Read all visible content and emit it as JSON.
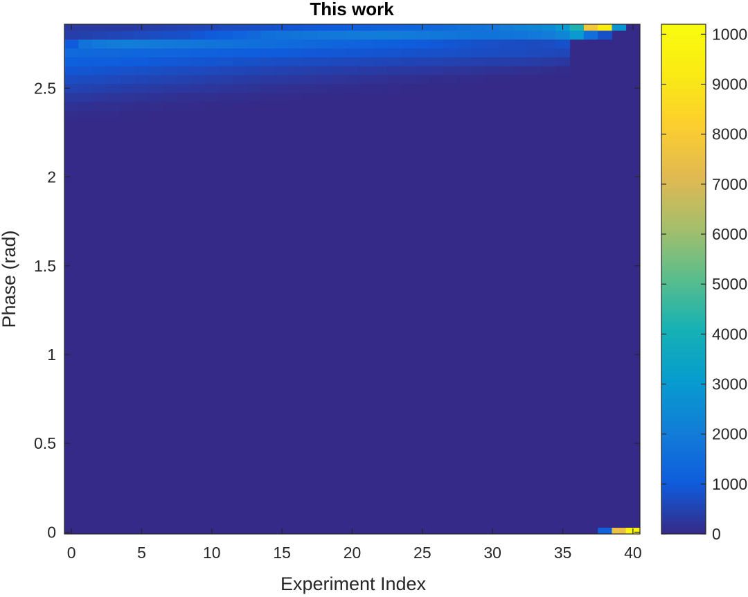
{
  "chart_data": {
    "type": "heatmap",
    "title": "This work",
    "xlabel": "Experiment Index",
    "ylabel": "Phase (rad)",
    "xlim": [
      -0.5,
      40.5
    ],
    "ylim": [
      -0.01,
      2.86
    ],
    "x_ticks": [
      0,
      5,
      10,
      15,
      20,
      25,
      30,
      35,
      40
    ],
    "x_tick_labels": [
      "0",
      "5",
      "10",
      "15",
      "20",
      "25",
      "30",
      "35",
      "40"
    ],
    "y_ticks": [
      0,
      0.5,
      1,
      1.5,
      2,
      2.5
    ],
    "y_tick_labels": [
      "0",
      "0.5",
      "1",
      "1.5",
      "2",
      "2.5"
    ],
    "x_count": 41,
    "bin_centers": [
      0.0,
      2.25,
      2.3,
      2.35,
      2.4,
      2.45,
      2.5,
      2.55,
      2.6,
      2.65,
      2.7,
      2.75,
      2.8,
      2.85
    ],
    "background_value": 0,
    "row_values": {
      "0.0": [
        0,
        0,
        0,
        0,
        0,
        0,
        0,
        0,
        0,
        0,
        0,
        0,
        0,
        0,
        0,
        0,
        0,
        0,
        0,
        0,
        0,
        0,
        0,
        0,
        0,
        0,
        0,
        0,
        0,
        0,
        0,
        0,
        0,
        0,
        0,
        0,
        0,
        0,
        1200,
        7500,
        9800
      ],
      "2.25": [
        0,
        0,
        0,
        0,
        0,
        0,
        0,
        0,
        0,
        0,
        0,
        0,
        0,
        0,
        0,
        0,
        0,
        0,
        0,
        0,
        0,
        0,
        0,
        0,
        0,
        0,
        0,
        0,
        0,
        0,
        0,
        0,
        0,
        0,
        0,
        0,
        0,
        0,
        0,
        0,
        0
      ],
      "2.3": [
        0,
        0,
        0,
        0,
        0,
        0,
        0,
        0,
        0,
        0,
        0,
        0,
        0,
        0,
        0,
        0,
        0,
        0,
        0,
        0,
        0,
        0,
        0,
        0,
        0,
        0,
        0,
        0,
        0,
        0,
        0,
        0,
        0,
        0,
        0,
        0,
        0,
        0,
        0,
        0,
        0
      ],
      "2.35": [
        60,
        50,
        40,
        30,
        20,
        15,
        10,
        5,
        0,
        0,
        0,
        0,
        0,
        0,
        0,
        0,
        0,
        0,
        0,
        0,
        0,
        0,
        0,
        0,
        0,
        0,
        0,
        0,
        0,
        0,
        0,
        0,
        0,
        0,
        0,
        0,
        0,
        0,
        0,
        0,
        0
      ],
      "2.4": [
        150,
        130,
        110,
        95,
        80,
        70,
        60,
        50,
        40,
        30,
        20,
        15,
        10,
        5,
        0,
        0,
        0,
        0,
        0,
        0,
        0,
        0,
        0,
        0,
        0,
        0,
        0,
        0,
        0,
        0,
        0,
        0,
        0,
        0,
        0,
        0,
        0,
        0,
        0,
        0,
        0
      ],
      "2.45": [
        300,
        280,
        250,
        220,
        200,
        180,
        160,
        140,
        120,
        110,
        95,
        85,
        75,
        60,
        50,
        40,
        30,
        25,
        20,
        15,
        10,
        5,
        0,
        0,
        0,
        0,
        0,
        0,
        0,
        0,
        0,
        0,
        0,
        0,
        0,
        0,
        0,
        0,
        0,
        0,
        0
      ],
      "2.5": [
        500,
        480,
        450,
        420,
        390,
        360,
        330,
        300,
        280,
        260,
        240,
        220,
        200,
        180,
        160,
        140,
        120,
        100,
        85,
        70,
        60,
        50,
        40,
        30,
        20,
        15,
        10,
        5,
        0,
        0,
        0,
        0,
        0,
        0,
        0,
        0,
        0,
        0,
        0,
        0,
        0
      ],
      "2.55": [
        700,
        680,
        650,
        620,
        590,
        560,
        530,
        500,
        470,
        440,
        410,
        380,
        350,
        320,
        300,
        280,
        260,
        240,
        220,
        200,
        180,
        160,
        140,
        120,
        100,
        85,
        70,
        55,
        40,
        30,
        20,
        15,
        10,
        5,
        0,
        0,
        0,
        0,
        0,
        0,
        0
      ],
      "2.6": [
        900,
        880,
        850,
        820,
        790,
        760,
        730,
        700,
        680,
        650,
        620,
        590,
        560,
        530,
        500,
        470,
        450,
        430,
        410,
        390,
        370,
        350,
        330,
        310,
        290,
        270,
        250,
        220,
        200,
        180,
        160,
        140,
        120,
        100,
        80,
        50,
        0,
        0,
        0,
        0,
        0
      ],
      "2.65": [
        1150,
        1120,
        1100,
        1070,
        1040,
        1010,
        980,
        950,
        920,
        890,
        860,
        830,
        800,
        770,
        740,
        720,
        700,
        680,
        660,
        640,
        620,
        600,
        580,
        560,
        540,
        520,
        500,
        480,
        460,
        440,
        420,
        400,
        380,
        360,
        320,
        280,
        0,
        0,
        0,
        0,
        0
      ],
      "2.7": [
        1450,
        1420,
        1400,
        1380,
        1350,
        1320,
        1290,
        1260,
        1230,
        1200,
        1170,
        1140,
        1110,
        1080,
        1050,
        1020,
        990,
        960,
        940,
        920,
        900,
        880,
        860,
        840,
        820,
        800,
        780,
        760,
        740,
        720,
        700,
        680,
        660,
        640,
        620,
        600,
        0,
        0,
        0,
        0,
        0
      ],
      "2.75": [
        1000,
        1700,
        1900,
        2000,
        2100,
        2000,
        1950,
        1900,
        1850,
        1800,
        1750,
        1700,
        1650,
        1600,
        1550,
        1500,
        1450,
        1400,
        1350,
        1300,
        1250,
        1200,
        1150,
        1100,
        1050,
        1000,
        950,
        900,
        850,
        800,
        760,
        720,
        700,
        680,
        700,
        800,
        0,
        0,
        0,
        0,
        0
      ],
      "2.8": [
        400,
        450,
        500,
        550,
        600,
        650,
        700,
        750,
        800,
        900,
        1000,
        1100,
        1250,
        1400,
        1600,
        1700,
        1750,
        1800,
        1850,
        1900,
        1950,
        2000,
        2050,
        2000,
        1950,
        1900,
        1850,
        1800,
        1750,
        1700,
        1700,
        1750,
        1800,
        1900,
        2000,
        2300,
        3000,
        1600,
        800,
        0,
        0
      ],
      "2.85": [
        300,
        300,
        300,
        300,
        300,
        350,
        400,
        450,
        500,
        550,
        600,
        650,
        700,
        750,
        800,
        850,
        900,
        950,
        1000,
        1050,
        1100,
        1150,
        1200,
        1250,
        1300,
        1350,
        1400,
        1500,
        1600,
        1700,
        1800,
        2000,
        2200,
        2300,
        2500,
        3000,
        4200,
        7800,
        9300,
        2800,
        0
      ]
    },
    "colorbar": {
      "colormap": "parula",
      "clim": [
        0,
        10200
      ],
      "ticks": [
        0,
        1000,
        2000,
        3000,
        4000,
        5000,
        6000,
        7000,
        8000,
        9000,
        10000
      ],
      "tick_labels": [
        "0",
        "1000",
        "2000",
        "3000",
        "4000",
        "5000",
        "6000",
        "7000",
        "8000",
        "9000",
        "10000"
      ]
    }
  }
}
